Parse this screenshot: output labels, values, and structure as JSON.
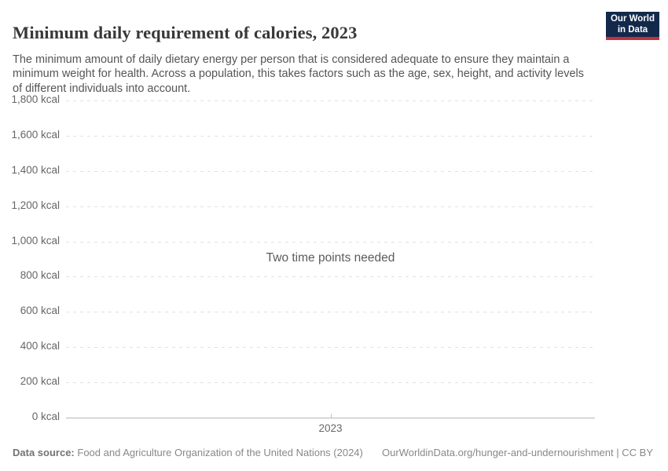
{
  "header": {
    "title": "Minimum daily requirement of calories, 2023",
    "subtitle": "The minimum amount of daily dietary energy per person that is considered adequate to ensure they maintain a minimum weight for health. Across a population, this takes factors such as the age, sex, height, and activity levels of different individuals into account.",
    "logo": {
      "line1": "Our World",
      "line2": "in Data"
    }
  },
  "chart_data": {
    "type": "line",
    "title": "Minimum daily requirement of calories, 2023",
    "message": "Two time points needed",
    "series": [],
    "x": [
      2023
    ],
    "xlabel": "",
    "ylabel": "",
    "ylim": [
      0,
      1800
    ],
    "grid": "horizontal-dashed",
    "legend": "none",
    "yticks": [
      {
        "value": 0,
        "label": "0 kcal"
      },
      {
        "value": 200,
        "label": "200 kcal"
      },
      {
        "value": 400,
        "label": "400 kcal"
      },
      {
        "value": 600,
        "label": "600 kcal"
      },
      {
        "value": 800,
        "label": "800 kcal"
      },
      {
        "value": 1000,
        "label": "1,000 kcal"
      },
      {
        "value": 1200,
        "label": "1,200 kcal"
      },
      {
        "value": 1400,
        "label": "1,400 kcal"
      },
      {
        "value": 1600,
        "label": "1,600 kcal"
      },
      {
        "value": 1800,
        "label": "1,800 kcal"
      }
    ],
    "xticks": [
      {
        "value": 2023,
        "label": "2023"
      }
    ]
  },
  "footer": {
    "datasource_label": "Data source:",
    "datasource_value": "Food and Agriculture Organization of the United Nations (2024)",
    "link": "OurWorldinData.org/hunger-and-undernourishment",
    "separator": "|",
    "license": "CC BY"
  },
  "colors": {
    "logo_bg": "#12294b",
    "logo_bar": "#c1303c",
    "gridline": "#e2e2e2",
    "axis": "#b5b5b5",
    "title_text": "#383838",
    "subtitle_text": "#555555",
    "tick_text": "#666666",
    "footer_text": "#888888"
  }
}
